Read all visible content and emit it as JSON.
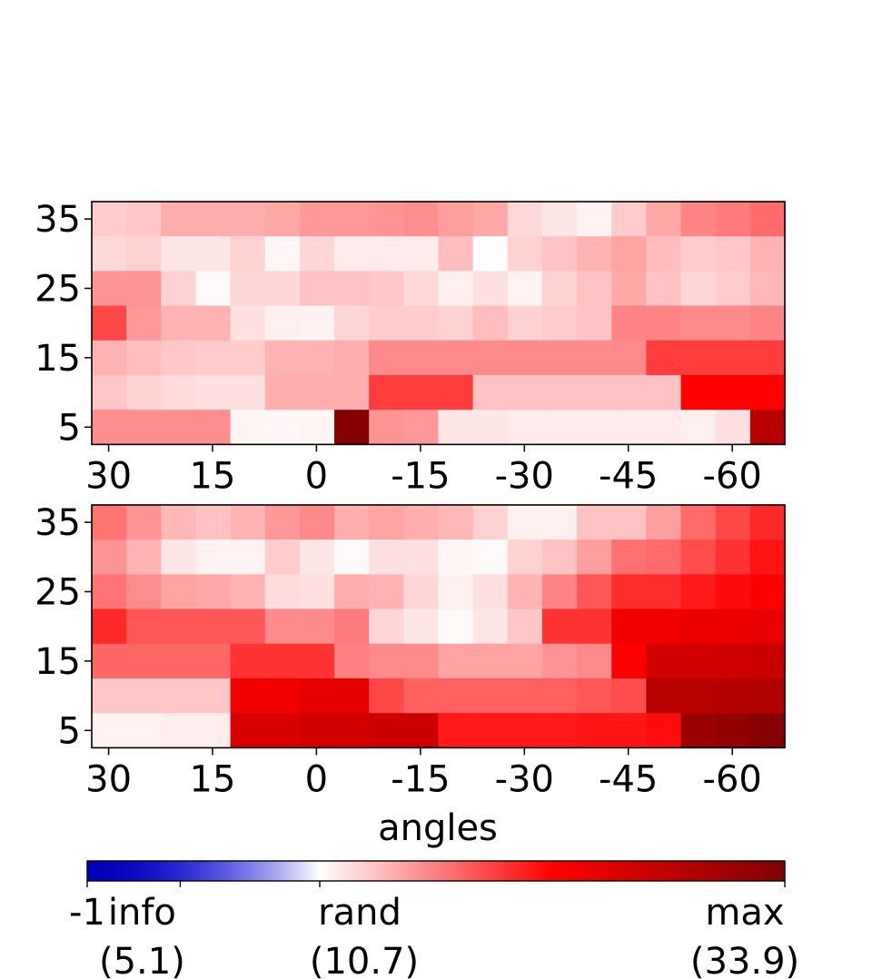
{
  "chart_data": [
    {
      "type": "heatmap",
      "panel": "top",
      "x_ticks": [
        "30",
        "15",
        "0",
        "-15",
        "-30",
        "-45",
        "-60"
      ],
      "y_ticks": [
        "35",
        "25",
        "15",
        "5"
      ],
      "columns": 20,
      "row_order": "top-to-bottom",
      "values": [
        [
          0.2,
          0.22,
          0.32,
          0.32,
          0.32,
          0.34,
          0.4,
          0.4,
          0.42,
          0.44,
          0.38,
          0.34,
          0.15,
          0.1,
          0.05,
          0.2,
          0.34,
          0.48,
          0.52,
          0.58
        ],
        [
          0.15,
          0.18,
          0.1,
          0.1,
          0.18,
          0.03,
          0.16,
          0.08,
          0.08,
          0.08,
          0.26,
          0.0,
          0.18,
          0.24,
          0.3,
          0.36,
          0.26,
          0.2,
          0.22,
          0.3
        ],
        [
          0.42,
          0.42,
          0.18,
          0.02,
          0.16,
          0.16,
          0.24,
          0.24,
          0.22,
          0.15,
          0.06,
          0.12,
          0.05,
          0.18,
          0.24,
          0.34,
          0.24,
          0.16,
          0.2,
          0.28
        ],
        [
          0.72,
          0.4,
          0.3,
          0.3,
          0.12,
          0.06,
          0.05,
          0.16,
          0.2,
          0.2,
          0.18,
          0.26,
          0.18,
          0.2,
          0.24,
          0.48,
          0.48,
          0.46,
          0.46,
          0.48
        ],
        [
          0.3,
          0.26,
          0.22,
          0.2,
          0.2,
          0.3,
          0.3,
          0.32,
          0.46,
          0.46,
          0.46,
          0.46,
          0.46,
          0.46,
          0.46,
          0.46,
          0.76,
          0.76,
          0.76,
          0.76
        ],
        [
          0.22,
          0.18,
          0.14,
          0.12,
          0.12,
          0.32,
          0.32,
          0.32,
          0.76,
          0.76,
          0.76,
          0.24,
          0.24,
          0.24,
          0.24,
          0.24,
          0.24,
          1.0,
          1.0,
          1.0
        ],
        [
          0.44,
          0.44,
          0.44,
          0.44,
          0.04,
          0.03,
          0.04,
          1.95,
          0.42,
          0.4,
          0.1,
          0.1,
          0.08,
          0.08,
          0.08,
          0.08,
          0.08,
          0.06,
          0.12,
          1.55
        ]
      ]
    },
    {
      "type": "heatmap",
      "panel": "bottom",
      "x_ticks": [
        "30",
        "15",
        "0",
        "-15",
        "-30",
        "-45",
        "-60"
      ],
      "y_ticks": [
        "35",
        "25",
        "15",
        "5"
      ],
      "xlabel": "angles",
      "columns": 20,
      "row_order": "top-to-bottom",
      "values": [
        [
          0.55,
          0.42,
          0.28,
          0.24,
          0.3,
          0.4,
          0.46,
          0.32,
          0.36,
          0.32,
          0.28,
          0.18,
          0.06,
          0.06,
          0.24,
          0.24,
          0.38,
          0.58,
          0.72,
          0.84
        ],
        [
          0.42,
          0.3,
          0.1,
          0.05,
          0.05,
          0.2,
          0.1,
          0.02,
          0.12,
          0.12,
          0.04,
          0.02,
          0.18,
          0.24,
          0.38,
          0.56,
          0.58,
          0.7,
          0.8,
          0.92
        ],
        [
          0.55,
          0.45,
          0.36,
          0.34,
          0.3,
          0.14,
          0.12,
          0.32,
          0.3,
          0.16,
          0.06,
          0.12,
          0.3,
          0.48,
          0.66,
          0.82,
          0.82,
          0.9,
          0.96,
          1.0
        ],
        [
          0.84,
          0.66,
          0.66,
          0.66,
          0.66,
          0.46,
          0.46,
          0.52,
          0.16,
          0.1,
          0.02,
          0.1,
          0.22,
          0.8,
          0.8,
          1.1,
          1.1,
          1.15,
          1.15,
          1.2
        ],
        [
          0.6,
          0.6,
          0.6,
          0.6,
          0.8,
          0.8,
          0.8,
          0.5,
          0.46,
          0.46,
          0.36,
          0.36,
          0.36,
          0.42,
          0.46,
          1.0,
          1.35,
          1.35,
          1.38,
          1.42
        ],
        [
          0.22,
          0.22,
          0.22,
          0.22,
          1.1,
          1.1,
          1.2,
          1.2,
          0.72,
          0.62,
          0.62,
          0.62,
          0.62,
          0.62,
          0.66,
          0.7,
          1.55,
          1.55,
          1.58,
          1.62
        ],
        [
          0.05,
          0.05,
          0.07,
          0.07,
          1.3,
          1.3,
          1.35,
          1.35,
          1.4,
          1.4,
          0.9,
          0.9,
          0.9,
          0.9,
          0.92,
          0.92,
          0.95,
          1.8,
          1.85,
          1.95
        ]
      ]
    },
    {
      "type": "colorbar",
      "colormap": "seismic",
      "range": [
        -1,
        2
      ],
      "tick_labels": [
        {
          "label": "-1",
          "value": -1
        },
        {
          "label": "info",
          "sub": "(5.1)",
          "value": -0.6
        },
        {
          "label": "rand",
          "sub": "(10.7)",
          "value": 0.0
        },
        {
          "label": "max",
          "sub": "(33.9)",
          "value": 2.0
        }
      ]
    }
  ]
}
